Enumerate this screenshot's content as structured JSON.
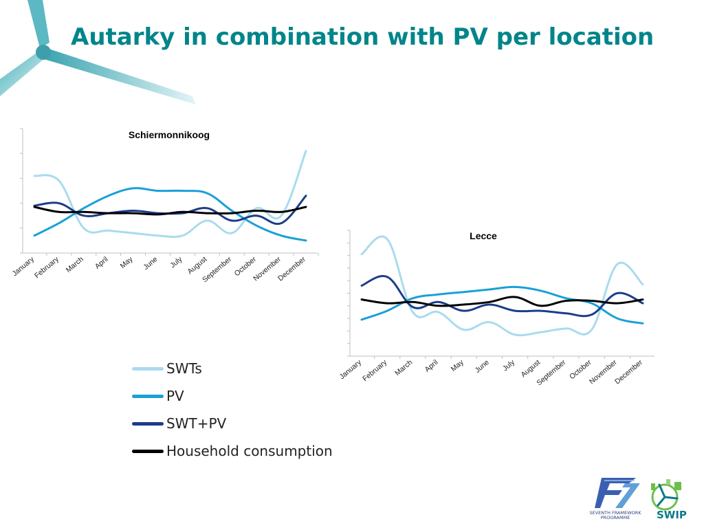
{
  "slide": {
    "title": "Autarky in combination with PV per location"
  },
  "legend": [
    {
      "label": "SWTs",
      "color": "#a9dbee"
    },
    {
      "label": "PV",
      "color": "#19a0d8"
    },
    {
      "label": "SWT+PV",
      "color": "#1b3d8a"
    },
    {
      "label": "Household consumption",
      "color": "#000000"
    }
  ],
  "logos": {
    "fp7_caption_line1": "SEVENTH FRAMEWORK",
    "fp7_caption_line2": "PROGRAMME",
    "swip_text": "SWIP",
    "fp7_icon": "fp7-logo-icon",
    "swip_icon": "swip-logo-icon"
  },
  "decoration": {
    "icon": "wind-turbine-icon",
    "color": "#3fa9b5"
  },
  "chart_data": [
    {
      "type": "line",
      "title": "Schiermonnikoog",
      "categories": [
        "January",
        "February",
        "March",
        "April",
        "May",
        "June",
        "July",
        "August",
        "September",
        "October",
        "November",
        "December"
      ],
      "ylim": [
        0,
        5
      ],
      "yticks": 5,
      "grid": false,
      "series": [
        {
          "name": "SWTs",
          "color": "#a9dbee",
          "values": [
            3.1,
            2.9,
            1.0,
            0.9,
            0.8,
            0.7,
            0.7,
            1.3,
            0.8,
            1.8,
            1.5,
            4.1
          ]
        },
        {
          "name": "PV",
          "color": "#19a0d8",
          "values": [
            0.7,
            1.2,
            1.8,
            2.3,
            2.6,
            2.5,
            2.5,
            2.4,
            1.7,
            1.1,
            0.7,
            0.5
          ]
        },
        {
          "name": "SWT+PV",
          "color": "#1b3d8a",
          "values": [
            1.9,
            2.0,
            1.5,
            1.6,
            1.7,
            1.6,
            1.6,
            1.8,
            1.3,
            1.5,
            1.2,
            2.3
          ]
        },
        {
          "name": "Household consumption",
          "color": "#000000",
          "values": [
            1.85,
            1.65,
            1.65,
            1.6,
            1.6,
            1.55,
            1.65,
            1.6,
            1.6,
            1.7,
            1.65,
            1.85
          ]
        }
      ]
    },
    {
      "type": "line",
      "title": "Lecce",
      "categories": [
        "January",
        "February",
        "March",
        "April",
        "May",
        "June",
        "July",
        "August",
        "September",
        "October",
        "November",
        "December"
      ],
      "ylim": [
        0,
        10
      ],
      "yticks": 10,
      "grid": false,
      "series": [
        {
          "name": "SWTs",
          "color": "#a9dbee",
          "values": [
            8.1,
            9.3,
            3.5,
            3.5,
            2.1,
            2.7,
            1.7,
            1.9,
            2.2,
            2.1,
            7.3,
            5.7
          ]
        },
        {
          "name": "PV",
          "color": "#19a0d8",
          "values": [
            2.9,
            3.6,
            4.6,
            4.9,
            5.1,
            5.3,
            5.5,
            5.2,
            4.6,
            4.2,
            3.0,
            2.6
          ]
        },
        {
          "name": "SWT+PV",
          "color": "#1b3d8a",
          "values": [
            5.6,
            6.3,
            3.9,
            4.3,
            3.6,
            4.1,
            3.6,
            3.6,
            3.4,
            3.3,
            5.0,
            4.2
          ]
        },
        {
          "name": "Household consumption",
          "color": "#000000",
          "values": [
            4.5,
            4.2,
            4.3,
            4.0,
            4.1,
            4.3,
            4.7,
            4.0,
            4.4,
            4.4,
            4.2,
            4.5
          ]
        }
      ]
    }
  ]
}
